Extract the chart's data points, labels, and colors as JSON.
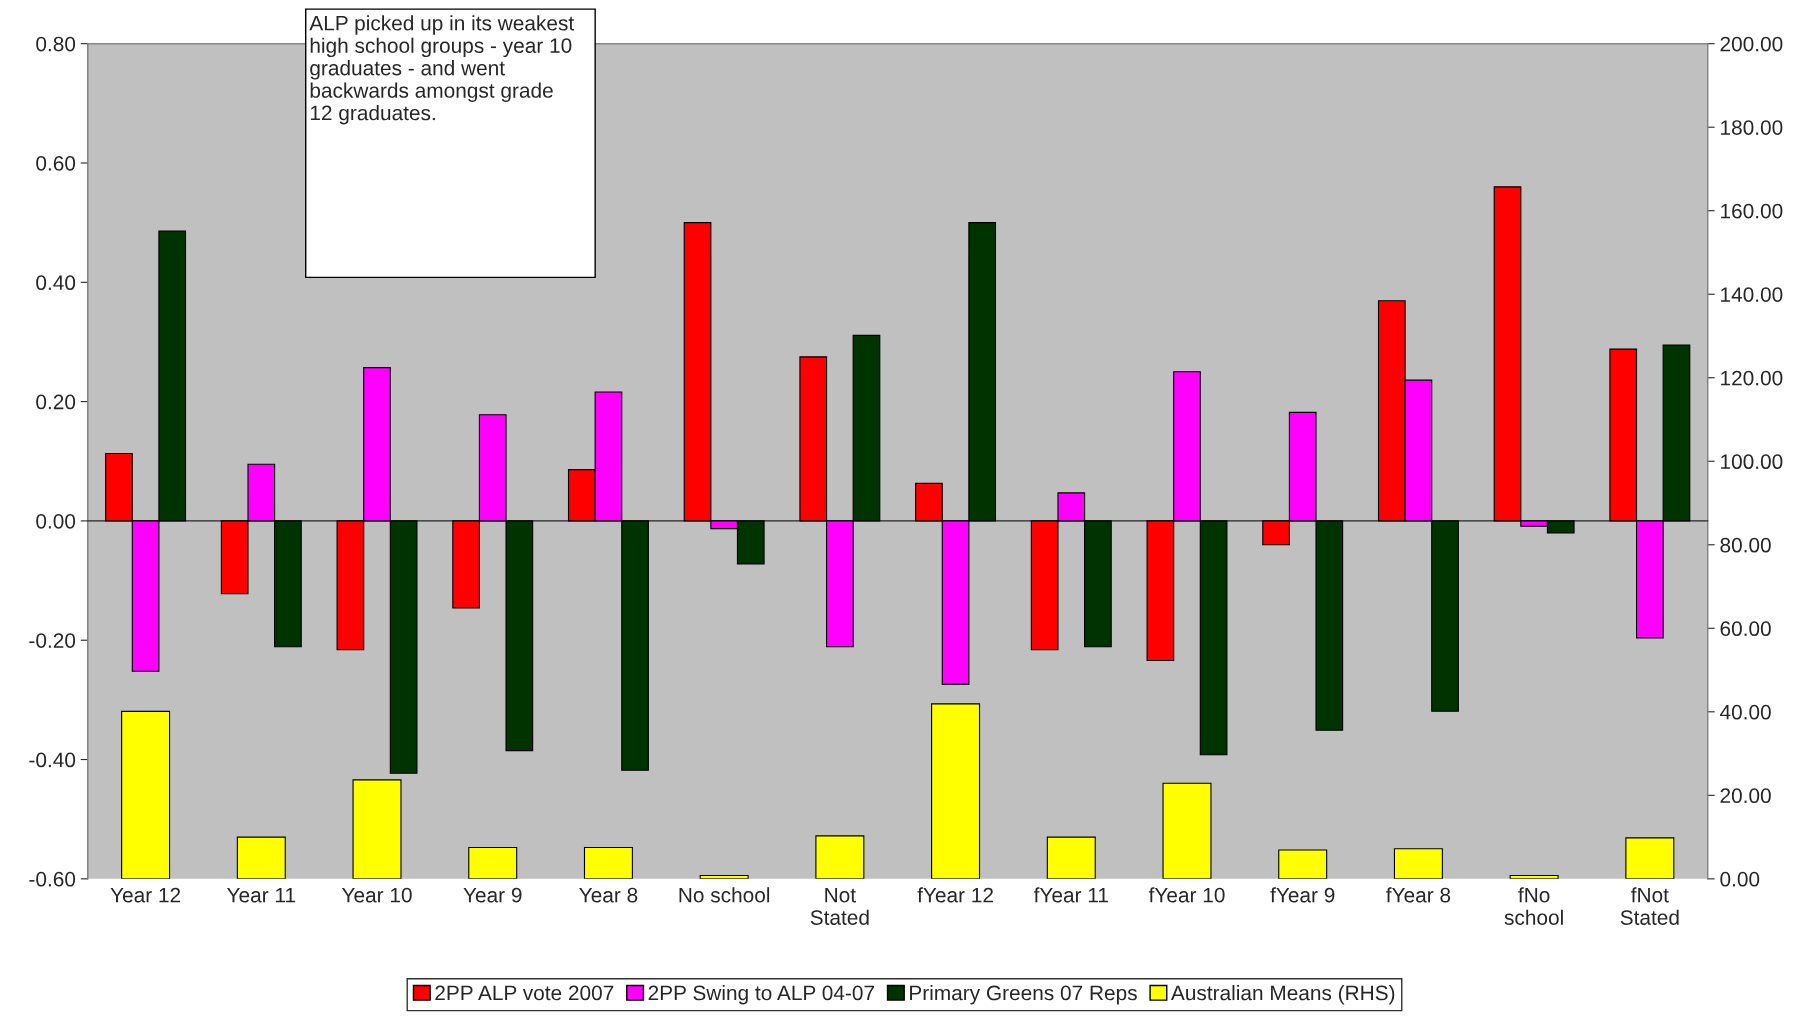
{
  "chart_data": {
    "type": "bar",
    "categories": [
      "Year 12",
      "Year 11",
      "Year 10",
      "Year 9",
      "Year 8",
      "No school",
      "Not\nStated",
      "fYear 12",
      "fYear 11",
      "fYear 10",
      "fYear 9",
      "fYear 8",
      "fNo\nschool",
      "fNot\nStated"
    ],
    "series": [
      {
        "name": "2PP ALP vote 2007",
        "color": "#ff0000",
        "values": [
          0.113,
          -0.122,
          -0.216,
          -0.146,
          0.086,
          0.5,
          0.275,
          0.063,
          -0.216,
          -0.234,
          -0.04,
          0.369,
          0.56,
          0.288
        ]
      },
      {
        "name": "2PP Swing to ALP 04-07",
        "color": "#ff00ff",
        "values": [
          -0.252,
          0.095,
          0.257,
          0.178,
          0.216,
          -0.013,
          -0.211,
          -0.274,
          0.047,
          0.25,
          0.182,
          0.236,
          -0.009,
          -0.196
        ]
      },
      {
        "name": "Primary Greens 07 Reps",
        "color": "#003300",
        "values": [
          0.486,
          -0.211,
          -0.423,
          -0.385,
          -0.418,
          -0.072,
          0.311,
          0.5,
          -0.211,
          -0.392,
          -0.351,
          -0.319,
          -0.02,
          0.295
        ]
      },
      {
        "name": "Australian Means (RHS)",
        "color": "#ffff00",
        "axis": "y2",
        "values": [
          40.1,
          10.0,
          23.7,
          7.5,
          7.5,
          0.8,
          10.3,
          41.9,
          10.0,
          22.9,
          6.9,
          7.2,
          0.8,
          9.8
        ]
      }
    ],
    "ylim": [
      -0.6,
      0.8
    ],
    "yticks": [
      {
        "value": -0.6,
        "label": "-0.60"
      },
      {
        "value": -0.4,
        "label": "-0.40"
      },
      {
        "value": -0.2,
        "label": "-0.20"
      },
      {
        "value": 0,
        "label": "0.00"
      },
      {
        "value": 0.2,
        "label": "0.20"
      },
      {
        "value": 0.4,
        "label": "0.40"
      },
      {
        "value": 0.6,
        "label": "0.60"
      },
      {
        "value": 0.8,
        "label": "0.80"
      }
    ],
    "y2lim": [
      0,
      200
    ],
    "y2ticks": [
      {
        "value": 0,
        "label": "0.00"
      },
      {
        "value": 20,
        "label": "20.00"
      },
      {
        "value": 40,
        "label": "40.00"
      },
      {
        "value": 60,
        "label": "60.00"
      },
      {
        "value": 80,
        "label": "80.00"
      },
      {
        "value": 100,
        "label": "100.00"
      },
      {
        "value": 120,
        "label": "120.00"
      },
      {
        "value": 140,
        "label": "140.00"
      },
      {
        "value": 160,
        "label": "160.00"
      },
      {
        "value": 180,
        "label": "180.00"
      },
      {
        "value": 200,
        "label": "200.00"
      }
    ],
    "annotations": [
      "ALP picked up in its weakest\nhigh school groups - year 10\ngraduates - and went\nbackwards amongst grade\n12 graduates."
    ],
    "legend": "bottom"
  }
}
